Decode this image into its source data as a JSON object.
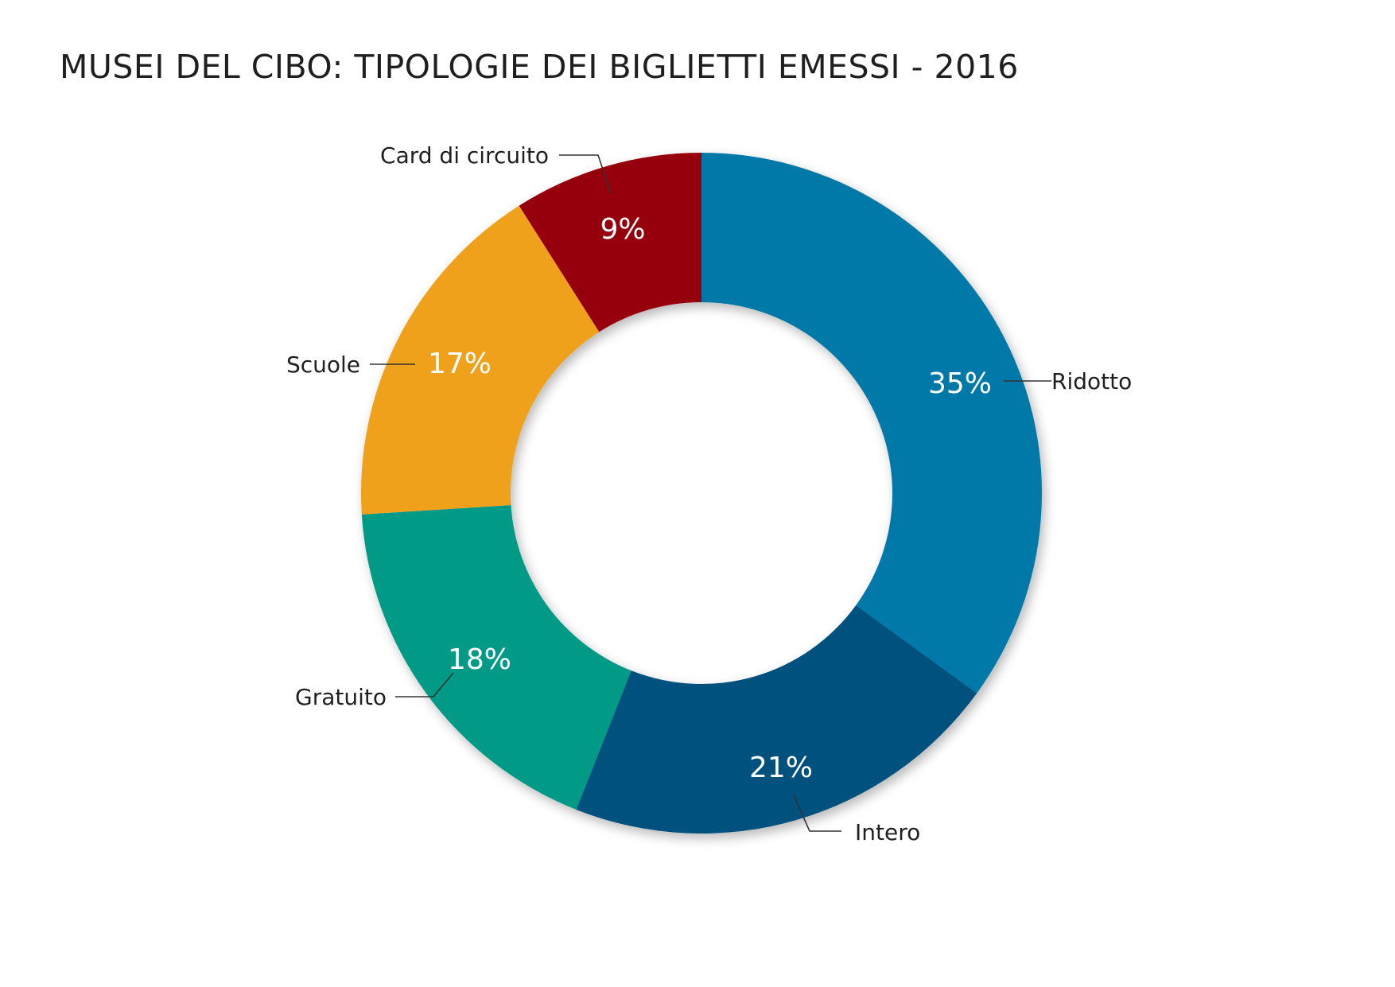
{
  "chart_data": {
    "type": "pie",
    "title": "MUSEI DEL CIBO: TIPOLOGIE DEI BIGLIETTI EMESSI - 2016",
    "categories": [
      "Ridotto",
      "Intero",
      "Gratuito",
      "Scuole",
      "Card di circuito"
    ],
    "values": [
      35,
      21,
      18,
      17,
      9
    ],
    "value_labels": [
      "35%",
      "21%",
      "18%",
      "17%",
      "9%"
    ],
    "colors": [
      "#0079a8",
      "#05517d",
      "#049a87",
      "#f0a11e",
      "#960009"
    ],
    "donut": true,
    "legend": "none"
  }
}
